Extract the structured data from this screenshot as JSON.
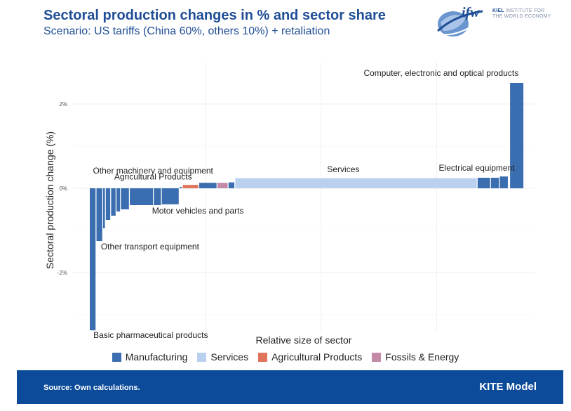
{
  "header": {
    "title": "Sectoral production changes in % and sector share",
    "subtitle": "Scenario: US tariffs (China 60%, others 10%) + retaliation"
  },
  "logo": {
    "mark": "ifw",
    "name_bold": "KIEL",
    "line1": "INSTITUTE FOR",
    "line2": "THE WORLD ECONOMY"
  },
  "footer": {
    "source": "Source: Own calculations.",
    "brand": "KITE Model"
  },
  "colors": {
    "Manufacturing": "#3a6eb0",
    "Services": "#b9d1ee",
    "Agricultural Products": "#e0735b",
    "Fossils & Energy": "#c38aa8"
  },
  "chart_data": {
    "type": "bar",
    "xlabel": "Relative size of sector",
    "ylabel": "Sectoral production change (%)",
    "ylim": [
      -3.4,
      3.0
    ],
    "yticks": [
      -2,
      0,
      2
    ],
    "ytick_labels": [
      "-2%",
      "0%",
      "2%"
    ],
    "grid": true,
    "legend_position": "bottom",
    "legend": [
      "Manufacturing",
      "Services",
      "Agricultural Products",
      "Fossils & Energy"
    ],
    "bars": [
      {
        "group": "Manufacturing",
        "x0": 0.0,
        "x1": 0.013,
        "value": -3.37
      },
      {
        "group": "Manufacturing",
        "x0": 0.015,
        "x1": 0.028,
        "value": -1.25
      },
      {
        "group": "Manufacturing",
        "x0": 0.03,
        "x1": 0.034,
        "value": -0.95
      },
      {
        "group": "Manufacturing",
        "x0": 0.036,
        "x1": 0.046,
        "value": -0.75
      },
      {
        "group": "Manufacturing",
        "x0": 0.048,
        "x1": 0.058,
        "value": -0.65
      },
      {
        "group": "Manufacturing",
        "x0": 0.06,
        "x1": 0.068,
        "value": -0.55
      },
      {
        "group": "Manufacturing",
        "x0": 0.07,
        "x1": 0.088,
        "value": -0.5
      },
      {
        "group": "Manufacturing",
        "x0": 0.09,
        "x1": 0.142,
        "value": -0.4
      },
      {
        "group": "Manufacturing",
        "x0": 0.144,
        "x1": 0.16,
        "value": -0.4
      },
      {
        "group": "Manufacturing",
        "x0": 0.162,
        "x1": 0.2,
        "value": -0.38
      },
      {
        "group": "Manufacturing",
        "x0": 0.202,
        "x1": 0.207,
        "value": 0.03
      },
      {
        "group": "Agricultural Products",
        "x0": 0.209,
        "x1": 0.244,
        "value": 0.08
      },
      {
        "group": "Manufacturing",
        "x0": 0.246,
        "x1": 0.285,
        "value": 0.13
      },
      {
        "group": "Fossils & Energy",
        "x0": 0.287,
        "x1": 0.31,
        "value": 0.13
      },
      {
        "group": "Manufacturing",
        "x0": 0.312,
        "x1": 0.325,
        "value": 0.14
      },
      {
        "group": "Services",
        "x0": 0.327,
        "x1": 0.87,
        "value": 0.24
      },
      {
        "group": "Manufacturing",
        "x0": 0.872,
        "x1": 0.9,
        "value": 0.25
      },
      {
        "group": "Manufacturing",
        "x0": 0.902,
        "x1": 0.92,
        "value": 0.25
      },
      {
        "group": "Manufacturing",
        "x0": 0.922,
        "x1": 0.94,
        "value": 0.28
      },
      {
        "group": "Manufacturing",
        "x0": 0.945,
        "x1": 0.975,
        "value": 2.5
      }
    ],
    "annotations": [
      {
        "text": "Computer, electronic and optical products",
        "x": 0.79,
        "y": 2.67,
        "anchor": "middle"
      },
      {
        "text": "Other machinery and equipment",
        "x": 0.007,
        "y": 0.35,
        "anchor": "start"
      },
      {
        "text": "Agricultural Products",
        "x": 0.055,
        "y": 0.21,
        "anchor": "start"
      },
      {
        "text": "Services",
        "x": 0.57,
        "y": 0.38,
        "anchor": "middle"
      },
      {
        "text": "Electrical equipment",
        "x": 0.87,
        "y": 0.42,
        "anchor": "middle"
      },
      {
        "text": "Motor vehicles and parts",
        "x": 0.14,
        "y": -0.6,
        "anchor": "start"
      },
      {
        "text": "Other transport equipment",
        "x": 0.025,
        "y": -1.45,
        "anchor": "start"
      },
      {
        "text": "Basic pharmaceutical products",
        "x": 0.008,
        "y": -3.55,
        "anchor": "start"
      }
    ]
  }
}
